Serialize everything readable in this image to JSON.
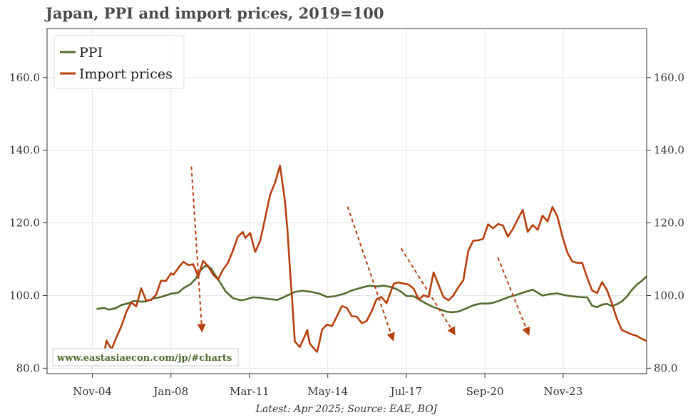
{
  "title": "Japan, PPI and import prices, 2019=100",
  "footer": "Latest: Apr 2025; Source: EAE, BOJ",
  "watermark": "www.eastasiaecon.com/jp/#charts",
  "colors": {
    "ppi": "#556b2f",
    "import": "#b5400f",
    "grid": "#e6e6e6",
    "axis": "#333333"
  },
  "chart_data": {
    "type": "line",
    "title": "Japan, PPI and import prices, 2019=100",
    "xlabel": "",
    "ylabel": "",
    "ylim": [
      78.5,
      173.5
    ],
    "xlim": [
      2003.0,
      2027.2
    ],
    "y_ticks": [
      "80.0",
      "100.0",
      "120.0",
      "140.0",
      "160.0"
    ],
    "y_tick_values": [
      80,
      100,
      120,
      140,
      160
    ],
    "x_ticks": [
      "Nov-04",
      "Jan-08",
      "Mar-11",
      "May-14",
      "Jul-17",
      "Sep-20",
      "Nov-23"
    ],
    "x_tick_values": [
      2004.83,
      2008.0,
      2011.17,
      2014.33,
      2017.5,
      2020.67,
      2023.83
    ],
    "legend": {
      "position": "top-left",
      "entries": [
        "PPI",
        "Import prices"
      ]
    },
    "series": [
      {
        "name": "PPI",
        "points": [
          [
            2005.0,
            96.3
          ],
          [
            2005.3,
            96.6
          ],
          [
            2005.5,
            96.1
          ],
          [
            2005.8,
            96.6
          ],
          [
            2006.0,
            97.4
          ],
          [
            2006.3,
            97.9
          ],
          [
            2006.5,
            98.5
          ],
          [
            2006.8,
            98.3
          ],
          [
            2007.0,
            98.4
          ],
          [
            2007.3,
            99.2
          ],
          [
            2007.6,
            99.6
          ],
          [
            2008.0,
            100.5
          ],
          [
            2008.3,
            100.8
          ],
          [
            2008.5,
            102.0
          ],
          [
            2008.8,
            103.2
          ],
          [
            2009.0,
            104.6
          ],
          [
            2009.2,
            107.0
          ],
          [
            2009.4,
            108.2
          ],
          [
            2009.6,
            107.6
          ],
          [
            2009.8,
            105.5
          ],
          [
            2010.0,
            103.4
          ],
          [
            2010.2,
            101.2
          ],
          [
            2010.5,
            99.3
          ],
          [
            2010.8,
            98.7
          ],
          [
            2011.0,
            98.9
          ],
          [
            2011.3,
            99.5
          ],
          [
            2011.6,
            99.4
          ],
          [
            2012.0,
            99.0
          ],
          [
            2012.3,
            98.8
          ],
          [
            2012.6,
            99.7
          ],
          [
            2013.0,
            101.0
          ],
          [
            2013.3,
            101.3
          ],
          [
            2013.6,
            101.1
          ],
          [
            2014.0,
            100.5
          ],
          [
            2014.3,
            99.6
          ],
          [
            2014.6,
            99.8
          ],
          [
            2015.0,
            100.5
          ],
          [
            2015.3,
            101.4
          ],
          [
            2015.7,
            102.2
          ],
          [
            2016.0,
            102.7
          ],
          [
            2016.3,
            102.5
          ],
          [
            2016.6,
            102.7
          ],
          [
            2016.9,
            102.3
          ],
          [
            2017.1,
            101.8
          ],
          [
            2017.3,
            101.0
          ],
          [
            2017.5,
            99.9
          ],
          [
            2017.8,
            99.8
          ],
          [
            2018.0,
            99.0
          ],
          [
            2018.3,
            97.8
          ],
          [
            2018.6,
            96.8
          ],
          [
            2018.9,
            96.1
          ],
          [
            2019.1,
            95.6
          ],
          [
            2019.3,
            95.4
          ],
          [
            2019.6,
            95.6
          ],
          [
            2019.9,
            96.4
          ],
          [
            2020.2,
            97.3
          ],
          [
            2020.5,
            97.8
          ],
          [
            2020.8,
            97.8
          ],
          [
            2021.0,
            98.0
          ],
          [
            2021.3,
            98.7
          ],
          [
            2021.6,
            99.5
          ],
          [
            2022.0,
            100.3
          ],
          [
            2022.3,
            101.0
          ],
          [
            2022.6,
            101.6
          ],
          [
            2022.8,
            100.8
          ],
          [
            2023.0,
            100.0
          ],
          [
            2023.3,
            100.4
          ],
          [
            2023.6,
            100.6
          ],
          [
            2023.9,
            100.1
          ],
          [
            2024.2,
            99.8
          ],
          [
            2024.5,
            99.6
          ],
          [
            2024.8,
            99.5
          ],
          [
            2025.0,
            97.2
          ],
          [
            2025.2,
            96.8
          ],
          [
            2025.4,
            97.5
          ],
          [
            2025.6,
            97.7
          ],
          [
            2025.8,
            97.1
          ],
          [
            2026.0,
            97.6
          ],
          [
            2026.2,
            98.4
          ],
          [
            2026.4,
            99.7
          ],
          [
            2026.6,
            101.5
          ],
          [
            2026.8,
            103.0
          ],
          [
            2027.0,
            104.0
          ],
          [
            2027.2,
            105.3
          ]
        ],
        "color": "#556b2f"
      },
      {
        "name": "Import prices",
        "points": [
          [
            2005.0,
            80.6
          ],
          [
            2005.3,
            84.0
          ],
          [
            2005.4,
            87.6
          ],
          [
            2005.6,
            85.2
          ],
          [
            2005.8,
            88.5
          ],
          [
            2006.0,
            91.6
          ],
          [
            2006.2,
            95.5
          ],
          [
            2006.4,
            98.1
          ],
          [
            2006.6,
            97.0
          ],
          [
            2006.8,
            102.0
          ],
          [
            2007.0,
            98.6
          ],
          [
            2007.2,
            98.8
          ],
          [
            2007.4,
            100.2
          ],
          [
            2007.6,
            104.1
          ],
          [
            2007.8,
            104.0
          ],
          [
            2008.0,
            106.1
          ],
          [
            2008.1,
            105.7
          ],
          [
            2008.3,
            107.6
          ],
          [
            2008.5,
            109.3
          ],
          [
            2008.7,
            108.4
          ],
          [
            2008.9,
            108.6
          ],
          [
            2009.1,
            105.2
          ],
          [
            2009.3,
            109.5
          ],
          [
            2009.5,
            108.1
          ],
          [
            2009.7,
            105.8
          ],
          [
            2009.9,
            104.4
          ],
          [
            2010.1,
            107.1
          ],
          [
            2010.3,
            109.0
          ],
          [
            2010.5,
            112.3
          ],
          [
            2010.7,
            116.2
          ],
          [
            2010.9,
            117.5
          ],
          [
            2011.0,
            115.9
          ],
          [
            2011.2,
            117.2
          ],
          [
            2011.4,
            112.0
          ],
          [
            2011.6,
            115.0
          ],
          [
            2011.8,
            121.2
          ],
          [
            2012.0,
            127.7
          ],
          [
            2012.2,
            131.0
          ],
          [
            2012.4,
            135.8
          ],
          [
            2012.6,
            126.2
          ],
          [
            2012.7,
            118.2
          ],
          [
            2012.8,
            107.5
          ],
          [
            2012.9,
            98.1
          ],
          [
            2013.0,
            87.4
          ],
          [
            2013.2,
            85.8
          ],
          [
            2013.4,
            88.8
          ],
          [
            2013.5,
            90.5
          ],
          [
            2013.6,
            86.8
          ],
          [
            2013.8,
            85.2
          ],
          [
            2013.9,
            84.5
          ],
          [
            2014.0,
            87.4
          ],
          [
            2014.1,
            90.6
          ],
          [
            2014.3,
            92.0
          ],
          [
            2014.5,
            91.6
          ],
          [
            2014.7,
            94.3
          ],
          [
            2014.9,
            97.1
          ],
          [
            2015.1,
            96.6
          ],
          [
            2015.3,
            94.3
          ],
          [
            2015.5,
            94.2
          ],
          [
            2015.7,
            92.4
          ],
          [
            2015.9,
            93.0
          ],
          [
            2016.1,
            95.7
          ],
          [
            2016.3,
            99.0
          ],
          [
            2016.5,
            99.6
          ],
          [
            2016.7,
            97.9
          ],
          [
            2016.9,
            101.6
          ],
          [
            2017.0,
            103.3
          ],
          [
            2017.2,
            103.6
          ],
          [
            2017.4,
            103.3
          ],
          [
            2017.6,
            103.0
          ],
          [
            2017.8,
            101.9
          ],
          [
            2018.0,
            98.9
          ],
          [
            2018.2,
            100.1
          ],
          [
            2018.4,
            99.6
          ],
          [
            2018.6,
            106.4
          ],
          [
            2018.8,
            103.0
          ],
          [
            2019.0,
            99.6
          ],
          [
            2019.2,
            98.7
          ],
          [
            2019.4,
            100.0
          ],
          [
            2019.6,
            102.3
          ],
          [
            2019.8,
            104.2
          ],
          [
            2020.0,
            112.3
          ],
          [
            2020.2,
            115.1
          ],
          [
            2020.4,
            115.2
          ],
          [
            2020.6,
            115.6
          ],
          [
            2020.8,
            119.6
          ],
          [
            2021.0,
            118.5
          ],
          [
            2021.2,
            119.7
          ],
          [
            2021.4,
            119.3
          ],
          [
            2021.6,
            116.2
          ],
          [
            2021.8,
            118.3
          ],
          [
            2022.0,
            121.0
          ],
          [
            2022.2,
            123.6
          ],
          [
            2022.4,
            117.5
          ],
          [
            2022.6,
            119.4
          ],
          [
            2022.8,
            118.1
          ],
          [
            2023.0,
            122.0
          ],
          [
            2023.2,
            120.4
          ],
          [
            2023.4,
            124.4
          ],
          [
            2023.6,
            121.7
          ],
          [
            2023.8,
            116.3
          ],
          [
            2024.0,
            111.8
          ],
          [
            2024.2,
            109.4
          ],
          [
            2024.4,
            109.0
          ],
          [
            2024.6,
            109.0
          ],
          [
            2024.8,
            104.9
          ],
          [
            2025.0,
            101.4
          ],
          [
            2025.2,
            100.7
          ],
          [
            2025.4,
            103.7
          ],
          [
            2025.6,
            101.5
          ],
          [
            2025.8,
            97.8
          ],
          [
            2026.0,
            93.6
          ],
          [
            2026.2,
            90.5
          ],
          [
            2026.4,
            89.9
          ],
          [
            2026.6,
            89.3
          ],
          [
            2026.8,
            88.9
          ],
          [
            2027.0,
            88.1
          ],
          [
            2027.2,
            87.5
          ]
        ],
        "color": "#b5400f"
      }
    ]
  }
}
